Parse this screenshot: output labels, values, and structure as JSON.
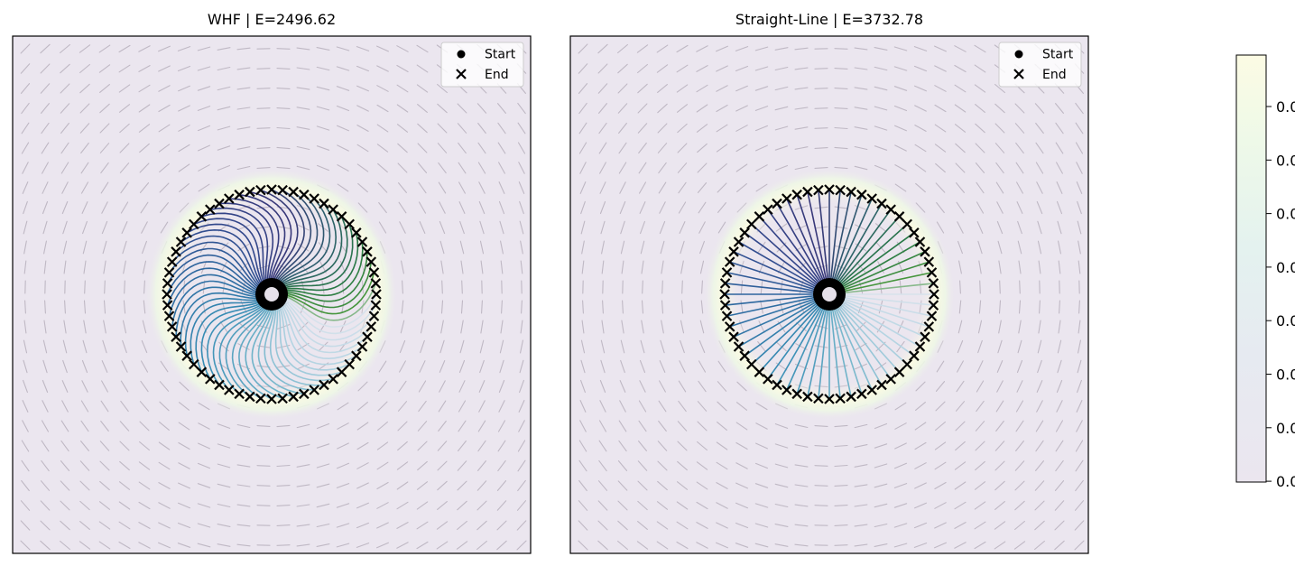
{
  "chart_data": [
    {
      "type": "line",
      "title": "WHF | E=2496.62",
      "method": "WHF",
      "energy": 2496.62,
      "trajectory_shape": "curved-spiral",
      "trajectory_count": 60,
      "legend": [
        "Start",
        "End"
      ],
      "legend_position": "top-right",
      "ticks_visible": false,
      "grid": false
    },
    {
      "type": "line",
      "title": "Straight-Line | E=3732.78",
      "method": "Straight-Line",
      "energy": 3732.78,
      "trajectory_shape": "straight",
      "trajectory_count": 60,
      "legend": [
        "Start",
        "End"
      ],
      "legend_position": "top-right",
      "ticks_visible": false,
      "grid": false
    }
  ],
  "colorbar": {
    "tick_labels": [
      "0.0",
      "0.0",
      "0.0",
      "0.0",
      "0.0",
      "0.0",
      "0.0",
      "0.0"
    ],
    "colors": [
      "#ebe6ef",
      "#e6eef2",
      "#e3f4ee",
      "#f0fae6",
      "#fbfbe6"
    ]
  },
  "colors": {
    "background": "#ebe6ef",
    "arrow": "#bfb8c4",
    "marker": "#000000",
    "glow": "#f3f8e4"
  }
}
